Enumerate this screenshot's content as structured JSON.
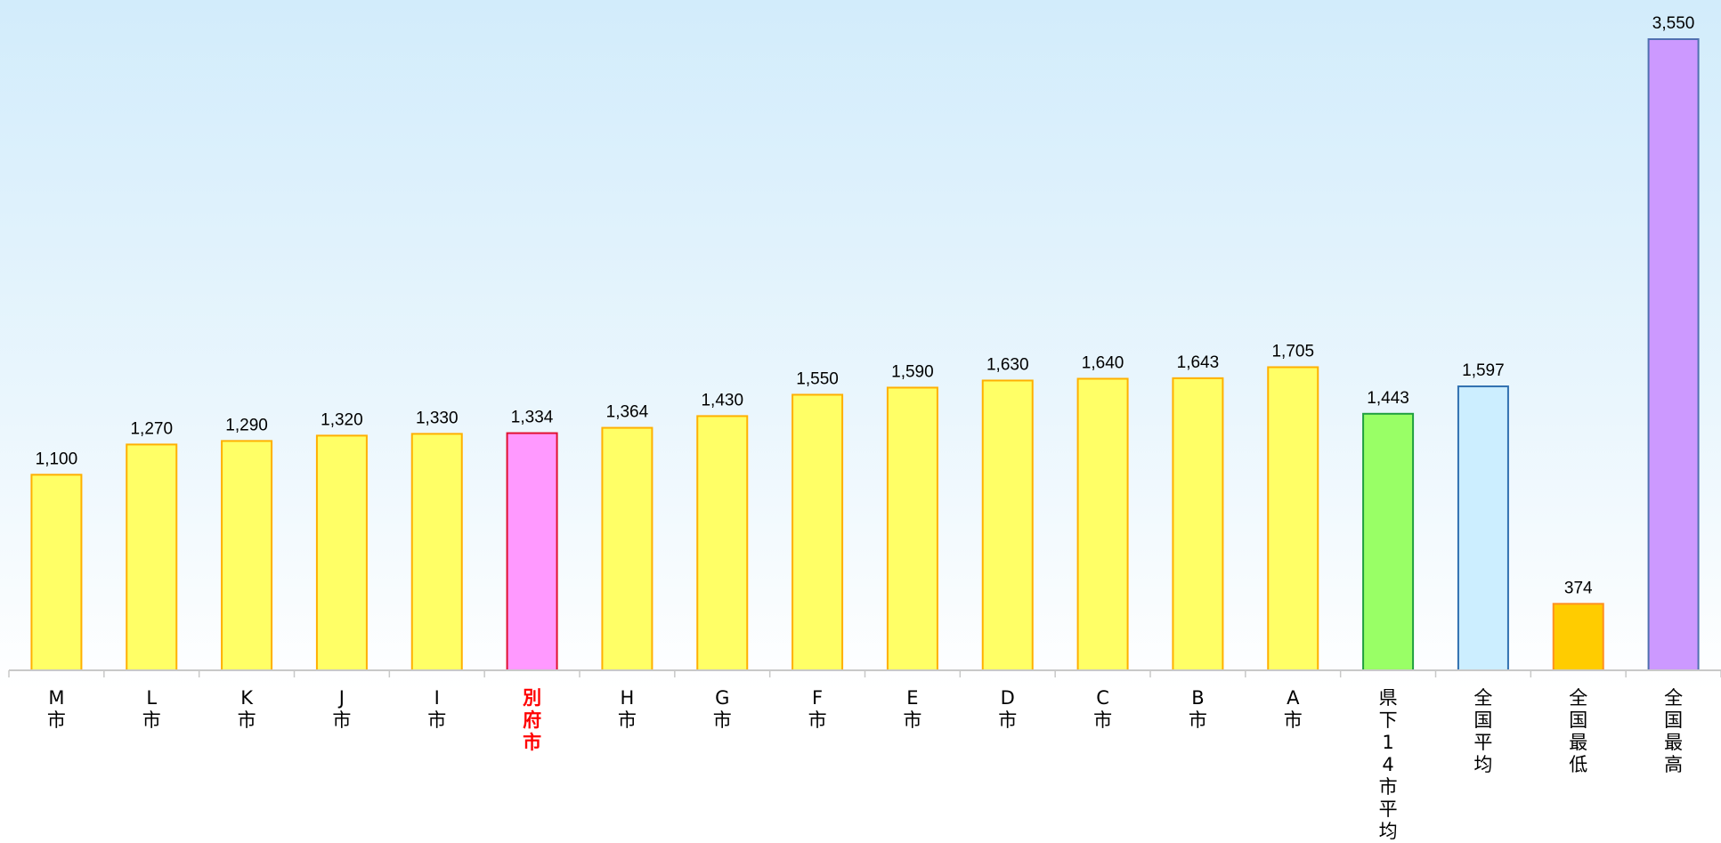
{
  "chart_data": {
    "type": "bar",
    "categories": [
      "M市",
      "L市",
      "K市",
      "J市",
      "I市",
      "別府市",
      "H市",
      "G市",
      "F市",
      "E市",
      "D市",
      "C市",
      "B市",
      "A市",
      "県下14市平均",
      "全国平均",
      "全国最低",
      "全国最高"
    ],
    "values": [
      1100,
      1270,
      1290,
      1320,
      1330,
      1334,
      1364,
      1430,
      1550,
      1590,
      1630,
      1640,
      1643,
      1705,
      1443,
      1597,
      374,
      3550
    ],
    "value_labels": [
      "1,100",
      "1,270",
      "1,290",
      "1,320",
      "1,330",
      "1,334",
      "1,364",
      "1,430",
      "1,550",
      "1,590",
      "1,630",
      "1,640",
      "1,643",
      "1,705",
      "1,443",
      "1,597",
      "374",
      "3,550"
    ],
    "colors": [
      "#ffff66",
      "#ffff66",
      "#ffff66",
      "#ffff66",
      "#ffff66",
      "#ff99ff",
      "#ffff66",
      "#ffff66",
      "#ffff66",
      "#ffff66",
      "#ffff66",
      "#ffff66",
      "#ffff66",
      "#ffff66",
      "#99ff66",
      "#cceeff",
      "#ffcc00",
      "#cc99ff"
    ],
    "edge_colors": [
      "#ffb000",
      "#ffb000",
      "#ffb000",
      "#ffb000",
      "#ffb000",
      "#e01030",
      "#ffb000",
      "#ffb000",
      "#ffb000",
      "#ffb000",
      "#ffb000",
      "#ffb000",
      "#ffb000",
      "#ffb000",
      "#20a040",
      "#3070b0",
      "#ff9020",
      "#5070b0"
    ],
    "label_colors": [
      "#000000",
      "#000000",
      "#000000",
      "#000000",
      "#000000",
      "#ff0000",
      "#000000",
      "#000000",
      "#000000",
      "#000000",
      "#000000",
      "#000000",
      "#000000",
      "#000000",
      "#000000",
      "#000000",
      "#000000",
      "#000000"
    ],
    "ylim": [
      0,
      3550
    ]
  }
}
